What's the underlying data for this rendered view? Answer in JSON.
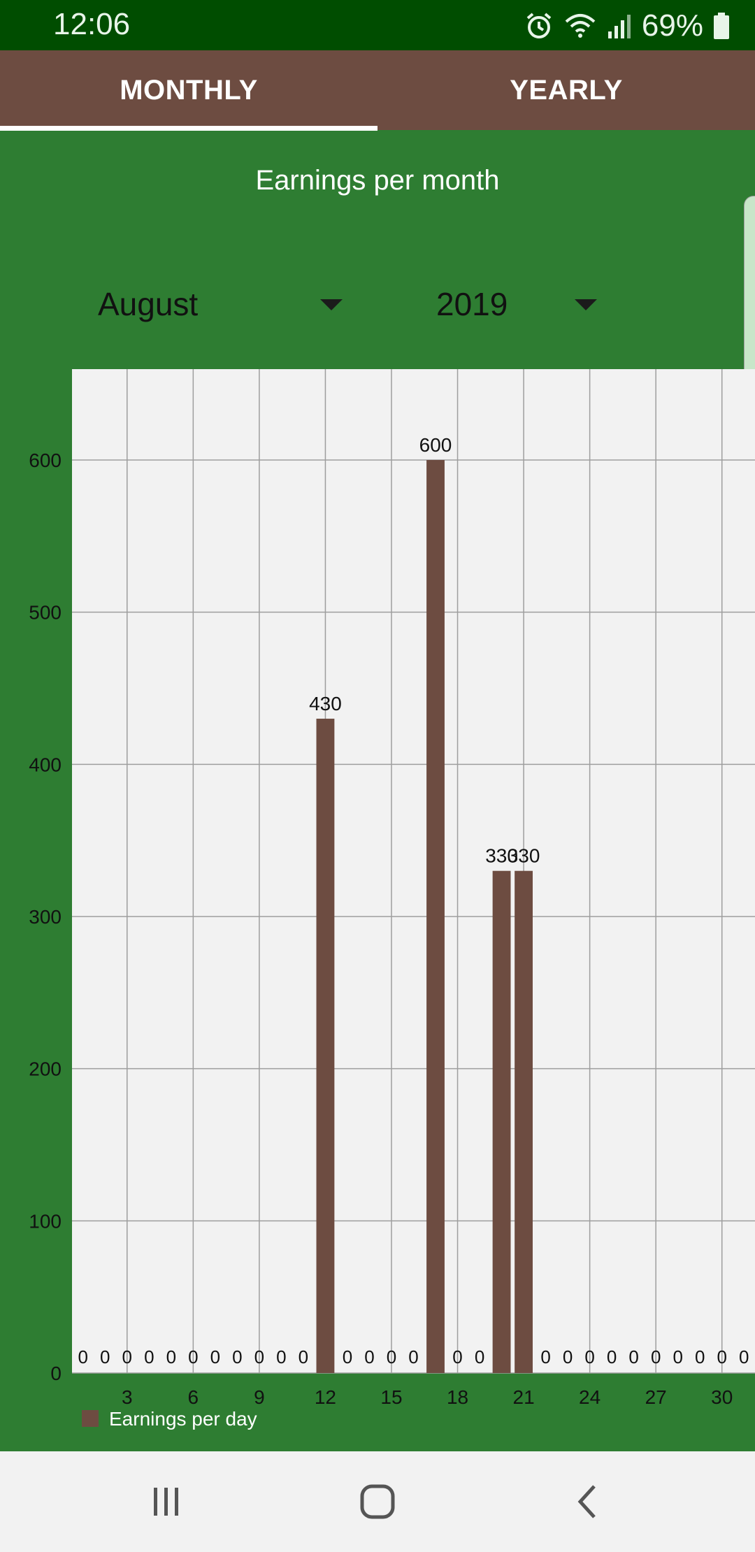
{
  "status_bar": {
    "time": "12:06",
    "battery": "69%",
    "icons": [
      "alarm-icon",
      "wifi-icon",
      "signal-icon",
      "battery-icon"
    ]
  },
  "tabs": [
    {
      "label": "MONTHLY",
      "selected": true
    },
    {
      "label": "YEARLY",
      "selected": false
    }
  ],
  "page_title": "Earnings per month",
  "filters": {
    "month": "August",
    "year": "2019"
  },
  "colors": {
    "background": "#2e7d32",
    "status_bar": "#004d00",
    "tabbar": "#6d4c41",
    "bar": "#6d4c41",
    "plot_background": "#f2f2f2"
  },
  "chart_data": {
    "type": "bar",
    "x": [
      1,
      2,
      3,
      4,
      5,
      6,
      7,
      8,
      9,
      10,
      11,
      12,
      13,
      14,
      15,
      16,
      17,
      18,
      19,
      20,
      21,
      22,
      23,
      24,
      25,
      26,
      27,
      28,
      29,
      30,
      31
    ],
    "series": [
      {
        "name": "Earnings per day",
        "values": [
          0,
          0,
          0,
          0,
          0,
          0,
          0,
          0,
          0,
          0,
          0,
          430,
          0,
          0,
          0,
          0,
          600,
          0,
          0,
          330,
          330,
          0,
          0,
          0,
          0,
          0,
          0,
          0,
          0,
          0,
          0
        ]
      }
    ],
    "x_ticks": [
      3,
      6,
      9,
      12,
      15,
      18,
      21,
      24,
      27,
      30
    ],
    "y_ticks": [
      0,
      100,
      200,
      300,
      400,
      500,
      600
    ],
    "ylim": [
      0,
      600
    ],
    "grid": true,
    "legend": "bottom-left"
  },
  "nav_bar": {
    "icons": [
      "recent-apps-icon",
      "home-icon",
      "back-icon"
    ]
  }
}
